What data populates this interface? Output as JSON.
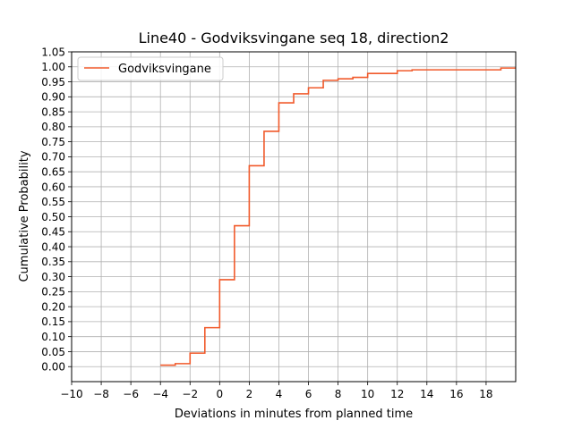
{
  "chart_data": {
    "type": "line",
    "title": "Line40 - Godviksvingane seq 18, direction2",
    "xlabel": "Deviations in minutes from planned time",
    "ylabel": "Cumulative Probability",
    "xlim": [
      -10,
      20
    ],
    "ylim": [
      -0.05,
      1.05
    ],
    "xticks": [
      -10,
      -8,
      -6,
      -4,
      -2,
      0,
      2,
      4,
      6,
      8,
      10,
      12,
      14,
      16,
      18
    ],
    "xtick_labels": [
      "−10",
      "−8",
      "−6",
      "−4",
      "−2",
      "0",
      "2",
      "4",
      "6",
      "8",
      "10",
      "12",
      "14",
      "16",
      "18"
    ],
    "yticks": [
      0.0,
      0.05,
      0.1,
      0.15,
      0.2,
      0.25,
      0.3,
      0.35,
      0.4,
      0.45,
      0.5,
      0.55,
      0.6,
      0.65,
      0.7,
      0.75,
      0.8,
      0.85,
      0.9,
      0.95,
      1.0,
      1.05
    ],
    "ytick_labels": [
      "0.00",
      "0.05",
      "0.10",
      "0.15",
      "0.20",
      "0.25",
      "0.30",
      "0.35",
      "0.40",
      "0.45",
      "0.50",
      "0.55",
      "0.60",
      "0.65",
      "0.70",
      "0.75",
      "0.80",
      "0.85",
      "0.90",
      "0.95",
      "1.00",
      "1.05"
    ],
    "grid": true,
    "legend_position": "top-left",
    "series": [
      {
        "name": "Godviksvingane",
        "color": "#f15a2b",
        "step": "post",
        "x": [
          -4,
          -3,
          -2,
          -1,
          0,
          1,
          2,
          3,
          4,
          5,
          6,
          7,
          8,
          9,
          10,
          12,
          13,
          19,
          20
        ],
        "y": [
          0.005,
          0.01,
          0.045,
          0.13,
          0.29,
          0.47,
          0.67,
          0.785,
          0.88,
          0.91,
          0.93,
          0.955,
          0.96,
          0.965,
          0.978,
          0.987,
          0.99,
          0.996,
          0.996
        ]
      }
    ]
  }
}
